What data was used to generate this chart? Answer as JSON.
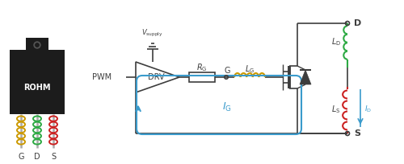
{
  "bg_color": "#ffffff",
  "line_color": "#3d3d3d",
  "blue_color": "#3a9bcc",
  "green_color": "#2eaa44",
  "red_color": "#cc2222",
  "yellow_color": "#cc9900",
  "rohm_bg": "#1c1c1c",
  "rohm_text": "#ffffff",
  "pwm_text": "PWM",
  "drv_text": "DRV",
  "g_node": "G",
  "d_node": "D",
  "s_node": "S",
  "g_label": "G",
  "d_label": "D",
  "s_label": "S"
}
